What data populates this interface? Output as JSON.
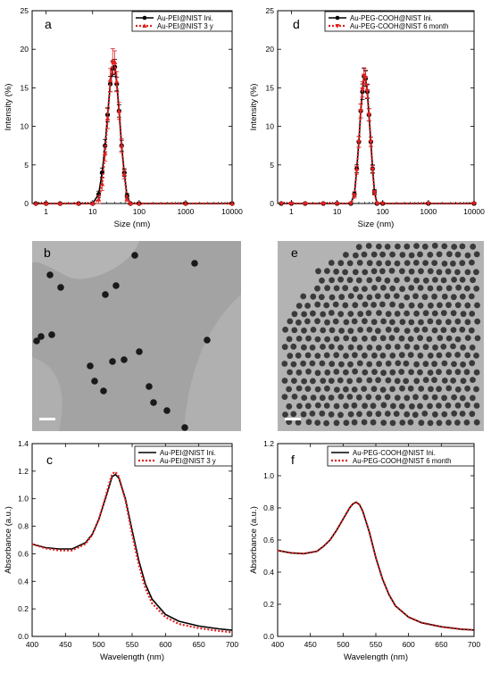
{
  "panels": {
    "a": "a",
    "b": "b",
    "c": "c",
    "d": "d",
    "e": "e",
    "f": "f"
  },
  "chart_data": [
    {
      "id": "a",
      "type": "line",
      "xscale": "log",
      "xlabel": "Size (nm)",
      "ylabel": "Intensity (%)",
      "xlim": [
        0.5,
        10000
      ],
      "ylim": [
        0,
        25
      ],
      "xticks": [
        1,
        10,
        100,
        1000,
        10000
      ],
      "yticks": [
        0,
        5,
        10,
        15,
        20,
        25
      ],
      "legend_position": "top-right",
      "series": [
        {
          "name": "Au-PEI@NIST Ini.",
          "color": "#000000",
          "marker": "circle",
          "style": "solid",
          "x": [
            0.6,
            1,
            2,
            5,
            10,
            13.5,
            16,
            18.5,
            21,
            24,
            27,
            30,
            33,
            37,
            42,
            48,
            55,
            65,
            100,
            1000,
            10000
          ],
          "y": [
            0,
            0,
            0,
            0,
            0,
            1.2,
            4,
            7.5,
            11.5,
            15.5,
            17.5,
            17.7,
            15.5,
            12,
            7.5,
            4,
            1,
            0,
            0,
            0,
            0
          ],
          "err": [
            0,
            0,
            0,
            0,
            0,
            0.4,
            0.6,
            0.8,
            0.9,
            1.0,
            1.0,
            1.0,
            0.9,
            0.8,
            0.7,
            0.5,
            0.3,
            0,
            0,
            0,
            0
          ]
        },
        {
          "name": "Au-PEI@NIST 3 y",
          "color": "#e02020",
          "marker": "triangle-up",
          "style": "dotted",
          "x": [
            0.6,
            1,
            2,
            5,
            10,
            13.5,
            16,
            18.5,
            21,
            24,
            27,
            30,
            33,
            37,
            42,
            48,
            55,
            65,
            100,
            1000,
            10000
          ],
          "y": [
            0,
            0,
            0,
            0,
            0,
            0.5,
            2.5,
            6.5,
            11,
            16,
            18.5,
            18.3,
            15.8,
            12,
            7.5,
            3.8,
            0.6,
            0,
            0,
            0,
            0
          ],
          "err": [
            0,
            0,
            0,
            0,
            0,
            0.5,
            0.8,
            1.0,
            1.3,
            1.5,
            1.6,
            1.5,
            1.3,
            1.1,
            0.9,
            0.6,
            0.3,
            0,
            0,
            0,
            0
          ]
        }
      ]
    },
    {
      "id": "d",
      "type": "line",
      "xscale": "log",
      "xlabel": "Size (nm)",
      "ylabel": "Intensity (%)",
      "xlim": [
        0.5,
        10000
      ],
      "ylim": [
        0,
        25
      ],
      "xticks": [
        1,
        10,
        100,
        1000,
        10000
      ],
      "yticks": [
        0,
        5,
        10,
        15,
        20,
        25
      ],
      "legend_position": "top-right",
      "series": [
        {
          "name": "Au-PEG-COOH@NIST Ini.",
          "color": "#000000",
          "marker": "circle",
          "style": "solid",
          "x": [
            0.6,
            1,
            2,
            5,
            10,
            20,
            24,
            27,
            30,
            33,
            36,
            39,
            42,
            46,
            50,
            55,
            60,
            66,
            75,
            100,
            1000,
            10000
          ],
          "y": [
            0,
            0,
            0,
            0,
            0,
            0,
            1.2,
            4.5,
            8,
            12,
            14.5,
            16.5,
            16.2,
            14.5,
            11.5,
            8,
            4.5,
            1.5,
            0,
            0,
            0,
            0
          ],
          "err": [
            0,
            0,
            0,
            0,
            0,
            0,
            0.3,
            0.5,
            0.7,
            0.9,
            1.0,
            1.0,
            1.0,
            0.9,
            0.8,
            0.6,
            0.5,
            0.3,
            0,
            0,
            0,
            0
          ]
        },
        {
          "name": "Au-PEG-COOH@NIST 6 month",
          "color": "#e02020",
          "marker": "triangle-down",
          "style": "dotted",
          "x": [
            0.6,
            1,
            2,
            5,
            10,
            20,
            24,
            27,
            30,
            33,
            36,
            39,
            42,
            46,
            50,
            55,
            60,
            66,
            75,
            100,
            1000,
            10000
          ],
          "y": [
            0,
            0,
            0,
            0,
            0,
            0,
            1.0,
            4.3,
            8,
            12,
            14.8,
            16.6,
            16.3,
            14.6,
            11.5,
            8,
            4.4,
            1.4,
            0,
            0,
            0,
            0
          ],
          "err": [
            0,
            0,
            0,
            0,
            0,
            0,
            0.3,
            0.5,
            0.7,
            0.9,
            1.0,
            1.0,
            1.0,
            0.9,
            0.8,
            0.6,
            0.5,
            0.3,
            0,
            0,
            0,
            0
          ]
        }
      ]
    },
    {
      "id": "c",
      "type": "line",
      "xlabel": "Wavelength (nm)",
      "ylabel": "Absorbance (a.u.)",
      "xlim": [
        400,
        700
      ],
      "ylim": [
        0,
        1.4
      ],
      "xticks": [
        400,
        450,
        500,
        550,
        600,
        650,
        700
      ],
      "yticks": [
        0.0,
        0.2,
        0.4,
        0.6,
        0.8,
        1.0,
        1.2,
        1.4
      ],
      "legend_position": "top-right",
      "series": [
        {
          "name": "Au-PEI@NIST Ini.",
          "color": "#000000",
          "style": "solid",
          "x": [
            400,
            420,
            440,
            460,
            480,
            490,
            500,
            510,
            515,
            520,
            525,
            530,
            540,
            550,
            560,
            570,
            580,
            600,
            620,
            650,
            680,
            700
          ],
          "y": [
            0.67,
            0.645,
            0.635,
            0.635,
            0.68,
            0.74,
            0.85,
            1.0,
            1.08,
            1.16,
            1.175,
            1.15,
            1.0,
            0.77,
            0.55,
            0.38,
            0.27,
            0.16,
            0.11,
            0.075,
            0.055,
            0.045
          ]
        },
        {
          "name": "Au-PEI@NIST 3 y",
          "color": "#e02020",
          "style": "dotted",
          "x": [
            400,
            420,
            440,
            460,
            480,
            490,
            500,
            510,
            515,
            520,
            525,
            530,
            540,
            550,
            560,
            570,
            580,
            600,
            620,
            650,
            680,
            700
          ],
          "y": [
            0.67,
            0.64,
            0.625,
            0.625,
            0.67,
            0.735,
            0.85,
            1.01,
            1.1,
            1.18,
            1.195,
            1.16,
            0.99,
            0.74,
            0.52,
            0.35,
            0.24,
            0.14,
            0.09,
            0.06,
            0.04,
            0.03
          ]
        }
      ]
    },
    {
      "id": "f",
      "type": "line",
      "xlabel": "Wavelength (nm)",
      "ylabel": "Absorbance (a.u.)",
      "xlim": [
        400,
        700
      ],
      "ylim": [
        0,
        1.2
      ],
      "xticks": [
        400,
        450,
        500,
        550,
        600,
        650,
        700
      ],
      "yticks": [
        0.0,
        0.2,
        0.4,
        0.6,
        0.8,
        1.0,
        1.2
      ],
      "legend_position": "top-right",
      "series": [
        {
          "name": "Au-PEG-COOH@NIST Ini.",
          "color": "#000000",
          "style": "solid",
          "x": [
            400,
            420,
            440,
            460,
            470,
            480,
            490,
            500,
            510,
            515,
            520,
            525,
            530,
            540,
            550,
            560,
            570,
            580,
            600,
            620,
            650,
            680,
            700
          ],
          "y": [
            0.535,
            0.52,
            0.515,
            0.53,
            0.56,
            0.6,
            0.66,
            0.73,
            0.8,
            0.825,
            0.835,
            0.82,
            0.78,
            0.65,
            0.49,
            0.36,
            0.26,
            0.19,
            0.12,
            0.085,
            0.06,
            0.045,
            0.04
          ]
        },
        {
          "name": "Au-PEG-COOH@NIST 6 month",
          "color": "#e02020",
          "style": "dotted",
          "x": [
            400,
            420,
            440,
            460,
            470,
            480,
            490,
            500,
            510,
            515,
            520,
            525,
            530,
            540,
            550,
            560,
            570,
            580,
            600,
            620,
            650,
            680,
            700
          ],
          "y": [
            0.535,
            0.52,
            0.515,
            0.53,
            0.56,
            0.6,
            0.66,
            0.73,
            0.8,
            0.825,
            0.835,
            0.82,
            0.78,
            0.65,
            0.49,
            0.36,
            0.26,
            0.19,
            0.12,
            0.085,
            0.06,
            0.045,
            0.04
          ]
        }
      ]
    }
  ]
}
